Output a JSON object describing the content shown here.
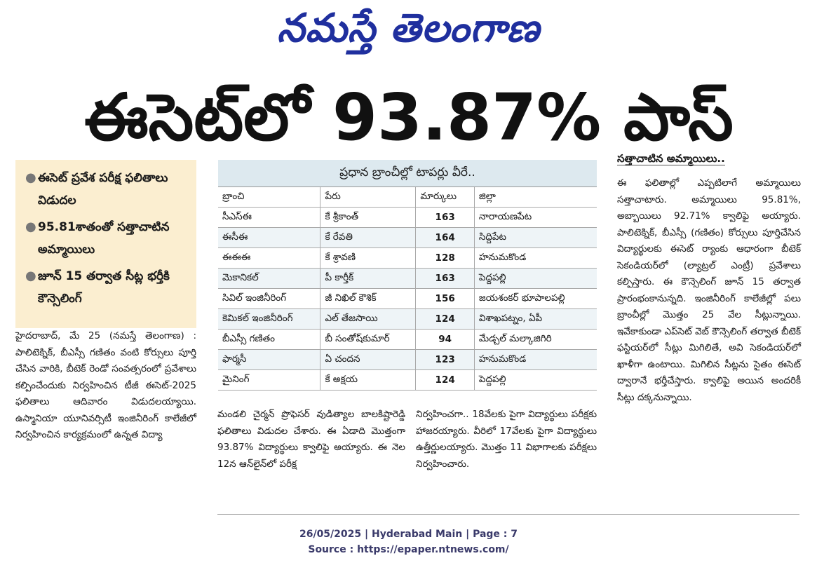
{
  "masthead": "నమస్తే తెలంగాణ",
  "headline": "ఈసెట్‌లో 93.87% పాస్",
  "highlights": [
    "ఈసెట్ ప్రవేశ పరీక్ష ఫలితాలు విడుదల",
    "95.81శాతంతో సత్తాచాటిన అమ్మాయిలు",
    "జూన్ 15 తర్వాత సీట్ల భర్తీకి కౌన్సెలింగ్"
  ],
  "col1": "హైదరాబాద్, మే 25 (నమస్తే తెలంగాణ) : పాలిటెక్నిక్, బీఎస్సీ గణితం వంటి కోర్సులు పూర్తి చేసిన వారికి, బీటెక్ రెండో సంవత్సరంలో ప్రవేశాలు కల్పించేందుకు నిర్వహించిన టీజీ ఈసెట్-2025 ఫలితాలు ఆదివారం విడుదలయ్యాయి. ఉస్మానియా యూనివర్సిటీ ఇంజినీరింగ్ కాలేజీలో నిర్వహించిన కార్యక్రమంలో ఉన్నత విద్యా",
  "col2": "మండలి చైర్మన్ ప్రొఫెసర్ వుడిత్యాల బాలకిష్టారెడ్డి ఫలితాలు విడుదల చేశారు. ఈ ఏడాది మొత్తంగా 93.87% విద్యార్థులు క్వాలిఫై అయ్యారు. ఈ నెల 12న ఆన్‌లైన్‌లో పరీక్ష",
  "col3": "నిర్వహించగా.. 18వేలకు పైగా విద్యార్థులు పరీక్షకు హాజరయ్యారు. వీరిలో 17వేలకు పైగా విద్యార్థులు ఉత్తీర్ణులయ్యారు. మొత్తం 11 విభాగాలకు పరీక్షలు నిర్వహించారు.",
  "col4_heading": "సత్తాచాటిన అమ్మాయిలు..",
  "col4": "ఈ ఫలితాల్లో ఎప్పటిలాగే అమ్మాయిలు సత్తాచాటారు. అమ్మాయిలు 95.81%, అబ్బాయిలు 92.71% క్వాలిఫై అయ్యారు. పాలిటెక్నిక్, బీఎస్సీ (గణితం) కోర్సులు పూర్తిచేసిన విద్యార్థులకు ఈసెట్ ర్యాంకు ఆధారంగా బీటెక్ సెకండియర్‌లో (ల్యాట్రల్ ఎంట్రీ) ప్రవేశాలు కల్పిస్తారు. ఈ కౌన్సెలింగ్ జూన్ 15 తర్వాత ప్రారంభంకానున్నది. ఇంజినీరింగ్ కాలేజీల్లో పలు బ్రాంచీల్లో మొత్తం 25 వేల సీట్లున్నాయి. ఇవేకాకుండా ఎప్‌సెట్ వెబ్ కౌన్సెలింగ్ తర్వాత బీటెక్ ఫస్టియర్‌లో సీట్లు మిగిలితే, అవి సెకండియర్‌లో ఖాళీగా ఉంటాయి. మిగిలిన సీట్లను సైతం ఈసెట్ ద్వారానే భర్తీచేస్తారు. క్వాలిఫై అయిన అందరికీ సీట్లు దక్కనున్నాయి.",
  "table": {
    "title": "ప్రధాన బ్రాంచీల్లో టాపర్లు వీరే..",
    "headers": [
      "బ్రాంచి",
      "పేరు",
      "మార్కులు",
      "జిల్లా"
    ],
    "rows": [
      [
        "సీఎస్ఈ",
        "కే శ్రీకాంత్",
        "163",
        "నారాయణపేట"
      ],
      [
        "ఈసీఈ",
        "కే రేవతి",
        "164",
        "సిద్దిపేట"
      ],
      [
        "ఈఈఈ",
        "కే శ్రావణి",
        "128",
        "హనుమకొండ"
      ],
      [
        "మెకానికల్",
        "పీ కార్తీక్",
        "163",
        "పెద్దపల్లి"
      ],
      [
        "సివిల్ ఇంజినీరింగ్",
        "జీ నిఖిల్ కౌశిక్",
        "156",
        "జయశంకర్ భూపాలపల్లి"
      ],
      [
        "కెమికల్ ఇంజినీరింగ్",
        "ఎల్ తేజసాయి",
        "124",
        "విశాఖపట్నం, ఏపీ"
      ],
      [
        "బీఎస్సీ గణితం",
        "బీ సంతోష్‌కుమార్",
        "94",
        "మేడ్చల్ మల్కాజిగిరి"
      ],
      [
        "ఫార్మసీ",
        "ఏ చందన",
        "123",
        "హనుమకొండ"
      ],
      [
        "మైనింగ్",
        "కే అక్షయ",
        "124",
        "పెద్దపల్లి"
      ]
    ]
  },
  "footer": {
    "line1": "26/05/2025 | Hyderabad Main | Page : 7",
    "line2": "Source : https://epaper.ntnews.com/"
  }
}
